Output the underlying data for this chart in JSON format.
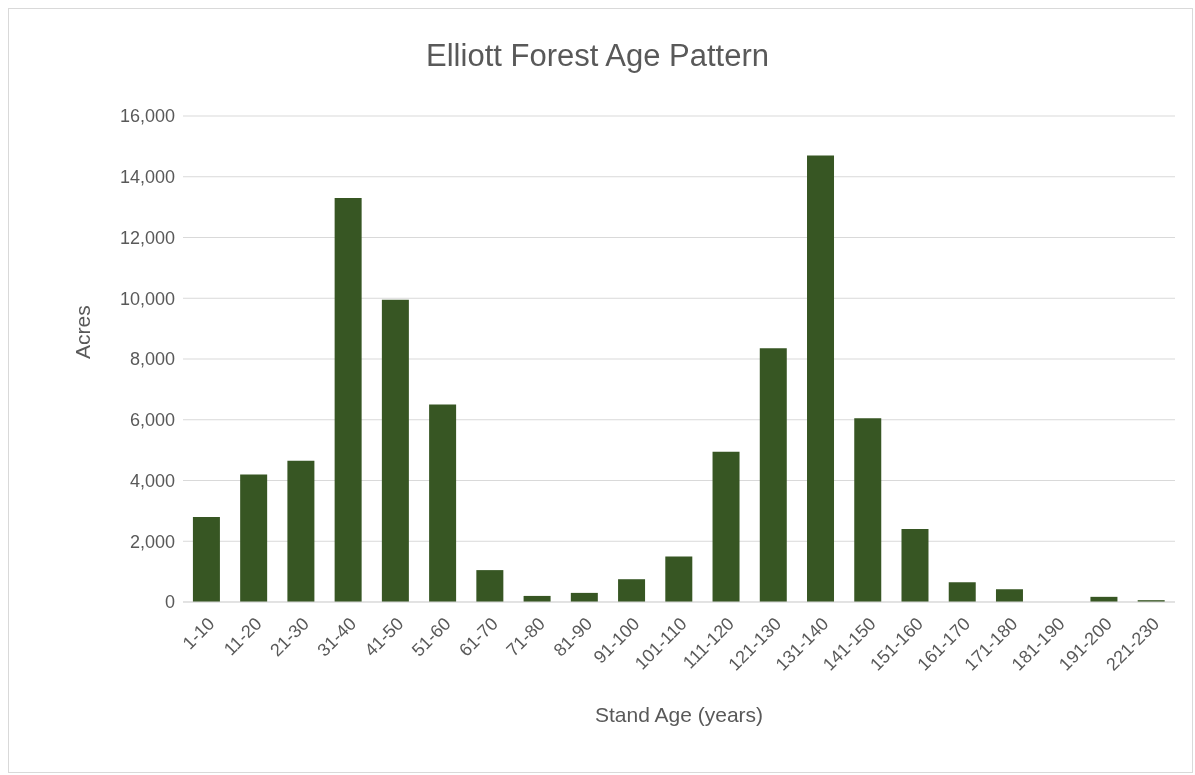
{
  "chart_data": {
    "type": "bar",
    "title": "Elliott Forest Age Pattern",
    "xlabel": "Stand Age (years)",
    "ylabel": "Acres",
    "categories": [
      "1-10",
      "11-20",
      "21-30",
      "31-40",
      "41-50",
      "51-60",
      "61-70",
      "71-80",
      "81-90",
      "91-100",
      "101-110",
      "111-120",
      "121-130",
      "131-140",
      "141-150",
      "151-160",
      "161-170",
      "171-180",
      "181-190",
      "191-200",
      "221-230"
    ],
    "values": [
      2800,
      4200,
      4650,
      13300,
      9950,
      6500,
      1050,
      200,
      300,
      750,
      1500,
      4950,
      8350,
      14700,
      6050,
      2400,
      650,
      420,
      0,
      170,
      60
    ],
    "color": "#375623",
    "ylim": [
      0,
      16000
    ],
    "yticks": [
      0,
      {
        "value": 2000,
        "label": "2,000"
      },
      {
        "value": 4000,
        "label": "4,000"
      },
      {
        "value": 6000,
        "label": "6,000"
      },
      {
        "value": 8000,
        "label": "8,000"
      },
      {
        "value": 10000,
        "label": "10,000"
      },
      {
        "value": 12000,
        "label": "12,000"
      },
      {
        "value": 14000,
        "label": "14,000"
      },
      {
        "value": 16000,
        "label": "16,000"
      }
    ],
    "grid": "y"
  }
}
